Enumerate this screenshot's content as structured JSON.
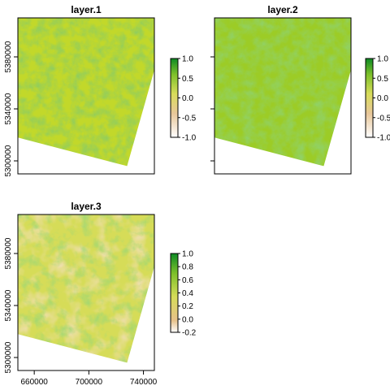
{
  "chart_data": [
    {
      "type": "heatmap",
      "title": "layer.1",
      "x_tick_labels": [],
      "y_tick_labels": [
        "5300000",
        "5340000",
        "5380000"
      ],
      "y_ticks": [
        5300000,
        5340000,
        5380000
      ],
      "xlim": [
        648000,
        748000
      ],
      "ylim": [
        5290000,
        5410000
      ],
      "colorbar": {
        "min": -1.0,
        "max": 1.0,
        "ticks": [
          "1.0",
          "0.5",
          "0.0",
          "-0.5",
          "-1.0"
        ],
        "tick_values": [
          1.0,
          0.5,
          0.0,
          -0.5,
          -1.0
        ]
      },
      "colors": {
        "base": "#c2d82a",
        "dark": "#3f9f22",
        "light": "#d9e15a"
      },
      "raster_extent": {
        "x": [
          648000,
          748000
        ],
        "y": [
          5297000,
          5410000
        ]
      },
      "raster_corners": [
        [
          648000,
          5410000
        ],
        [
          748000,
          5410000
        ],
        [
          748000,
          5370000
        ],
        [
          728000,
          5296000
        ],
        [
          648000,
          5318000
        ]
      ]
    },
    {
      "type": "heatmap",
      "title": "layer.2",
      "x_tick_labels": [],
      "y_tick_labels": [],
      "y_ticks": [
        5300000,
        5340000,
        5380000
      ],
      "xlim": [
        648000,
        748000
      ],
      "ylim": [
        5290000,
        5410000
      ],
      "colorbar": {
        "min": -1.0,
        "max": 1.0,
        "ticks": [
          "1.0",
          "0.5",
          "0.0",
          "-0.5",
          "-1.0"
        ],
        "tick_values": [
          1.0,
          0.5,
          0.0,
          -0.5,
          -1.0
        ]
      },
      "colors": {
        "base": "#9ccc26",
        "dark": "#4aa822",
        "light": "#d8e04a"
      },
      "raster_extent": {
        "x": [
          648000,
          748000
        ],
        "y": [
          5297000,
          5410000
        ]
      },
      "raster_corners": [
        [
          648000,
          5410000
        ],
        [
          748000,
          5410000
        ],
        [
          748000,
          5370000
        ],
        [
          728000,
          5296000
        ],
        [
          648000,
          5318000
        ]
      ]
    },
    {
      "type": "heatmap",
      "title": "layer.3",
      "x_tick_labels": [
        "660000",
        "700000",
        "740000"
      ],
      "x_ticks": [
        660000,
        700000,
        740000
      ],
      "y_tick_labels": [
        "5300000",
        "5340000",
        "5380000"
      ],
      "y_ticks": [
        5300000,
        5340000,
        5380000
      ],
      "xlim": [
        648000,
        748000
      ],
      "ylim": [
        5290000,
        5410000
      ],
      "colorbar": {
        "min": -0.2,
        "max": 1.0,
        "ticks": [
          "1.0",
          "0.8",
          "0.6",
          "0.4",
          "0.2",
          "0.0",
          "-0.2"
        ],
        "tick_values": [
          1.0,
          0.8,
          0.6,
          0.4,
          0.2,
          0.0,
          -0.2
        ]
      },
      "colors": {
        "base": "#d6dc58",
        "dark": "#5eb22a",
        "light": "#e4c27e"
      },
      "raster_extent": {
        "x": [
          648000,
          748000
        ],
        "y": [
          5297000,
          5410000
        ]
      },
      "raster_corners": [
        [
          648000,
          5410000
        ],
        [
          748000,
          5410000
        ],
        [
          748000,
          5370000
        ],
        [
          728000,
          5296000
        ],
        [
          648000,
          5318000
        ]
      ]
    }
  ]
}
